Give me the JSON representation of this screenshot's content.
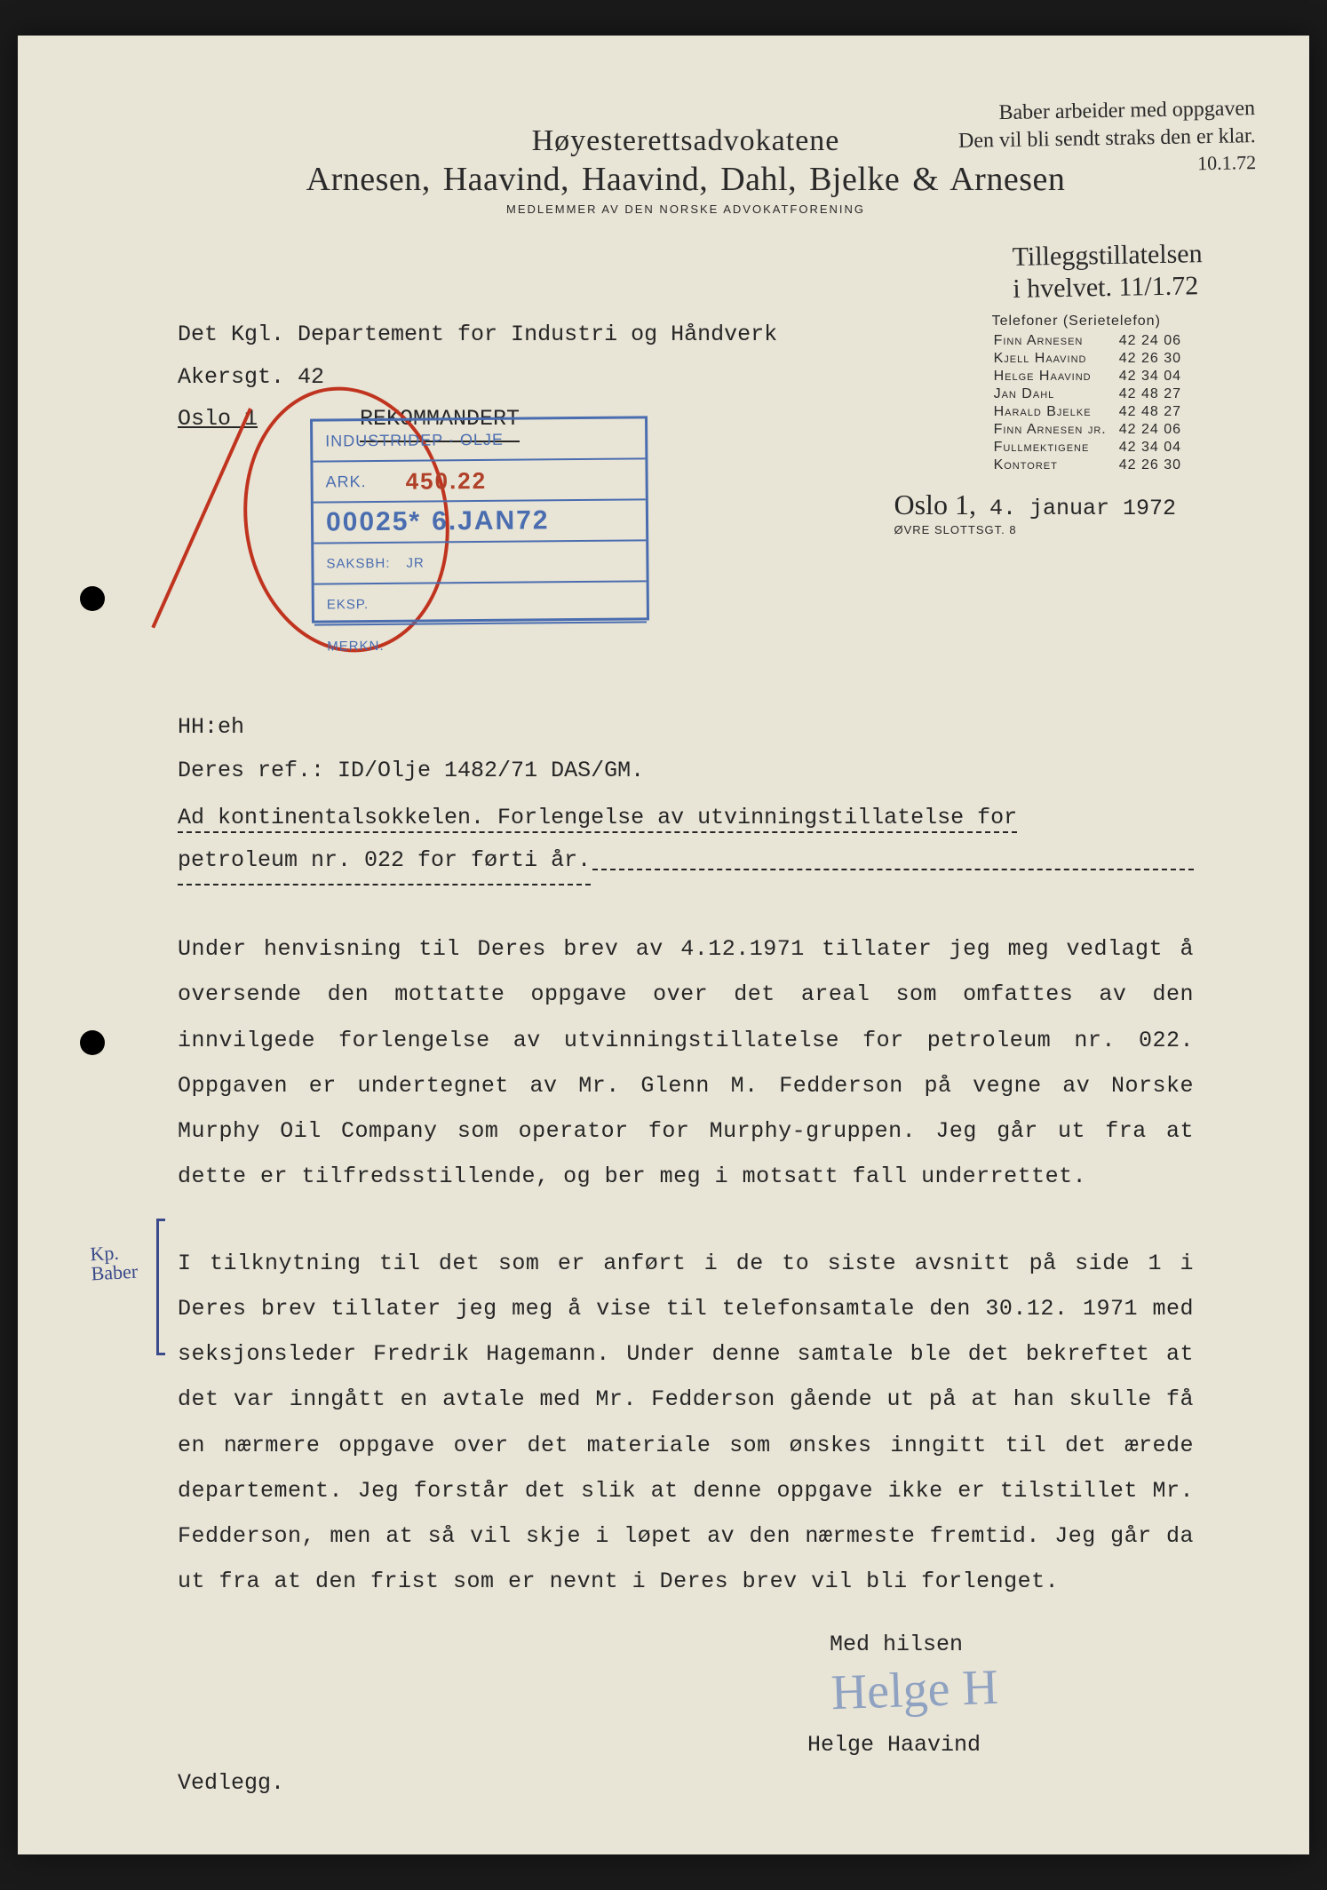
{
  "letterhead": {
    "sub": "Høyesterettsadvokatene",
    "main": "Arnesen, Haavind, Haavind, Dahl, Bjelke & Arnesen",
    "small": "MEDLEMMER AV DEN NORSKE ADVOKATFORENING"
  },
  "handwritten_top": {
    "l1": "Baber arbeider med oppgaven",
    "l2": "Den vil bli sendt straks den er klar.",
    "l3": "10.1.72"
  },
  "handwritten_mid": {
    "l1": "Tilleggstillatelsen",
    "l2": "i hvelvet.  11/1.72"
  },
  "address": {
    "l1": "Det Kgl. Departement for Industri og Håndverk",
    "l2": "Akersgt. 42",
    "l3": "Oslo 1",
    "rek": "REKOMMANDERT"
  },
  "phones": {
    "hdr": "Telefoner (Serietelefon)",
    "rows": [
      [
        "Finn Arnesen",
        "42 24 06"
      ],
      [
        "Kjell Haavind",
        "42 26 30"
      ],
      [
        "Helge Haavind",
        "42 34 04"
      ],
      [
        "Jan Dahl",
        "42 48 27"
      ],
      [
        "Harald Bjelke",
        "42 48 27"
      ],
      [
        "Finn Arnesen jr.",
        "42 24 06"
      ],
      [
        "Fullmektigene",
        "42 34 04"
      ],
      [
        "Kontoret",
        "42 26 30"
      ]
    ]
  },
  "stamp": {
    "l1": "INDUSTRIDEP · OLJE",
    "ark": "ARK.",
    "arkv": "450.22",
    "num": "00025*",
    "numd": "6.JAN72",
    "sak": "SAKSBH:",
    "sakv": "JR",
    "eksp": "EKSP.",
    "merk": "MERKN."
  },
  "date": {
    "city": "Oslo 1,",
    "rest": "4. januar 1972",
    "sub": "ØVRE SLOTTSGT. 8"
  },
  "refs": {
    "l1": "HH:eh",
    "l2": "Deres ref.:  ID/Olje 1482/71 DAS/GM."
  },
  "subject": {
    "l1": "Ad kontinentalsokkelen.  Forlengelse av utvinningstillatelse for",
    "l2": "petroleum nr. 022 for førti år."
  },
  "para1": "Under henvisning til Deres brev av 4.12.1971 tillater jeg meg vedlagt å oversende den mottatte oppgave over det areal som omfattes av den innvilgede forlengelse av utvinningstillatelse for petroleum nr. 022.  Oppgaven er undertegnet av Mr. Glenn M. Fedderson på vegne av Norske Murphy Oil Company som operator for Murphy-gruppen.  Jeg går ut fra at dette er tilfredsstillende, og ber meg i motsatt fall underrettet.",
  "para2": "I tilknytning til det som er anført i de to siste avsnitt på side 1 i Deres brev tillater jeg meg å vise til telefonsamtale den 30.12. 1971 med seksjonsleder Fredrik Hagemann.  Under denne samtale ble det bekreftet at det var inngått en avtale med Mr. Fedderson gående ut på at han skulle få en nærmere oppgave over det materiale som ønskes inngitt til det ærede departement.  Jeg forstår det slik at denne oppgave ikke er tilstillet Mr. Fedderson, men at så vil skje i løpet av den nærmeste fremtid.  Jeg går da ut fra at den frist som er nevnt i Deres brev vil bli forlenget.",
  "closing": "Med hilsen",
  "signature": "Helge H",
  "signame": "Helge Haavind",
  "vedlegg": "Vedlegg.",
  "margin_hand": {
    "l1": "Kp.",
    "l2": "Baber"
  },
  "colors": {
    "page_bg": "#e8e4d6",
    "ink": "#262626",
    "stamp_blue": "#4a6db0",
    "stamp_red": "#b04028",
    "pen_red": "#c0341f",
    "pen_blue": "#3a4a8a"
  }
}
